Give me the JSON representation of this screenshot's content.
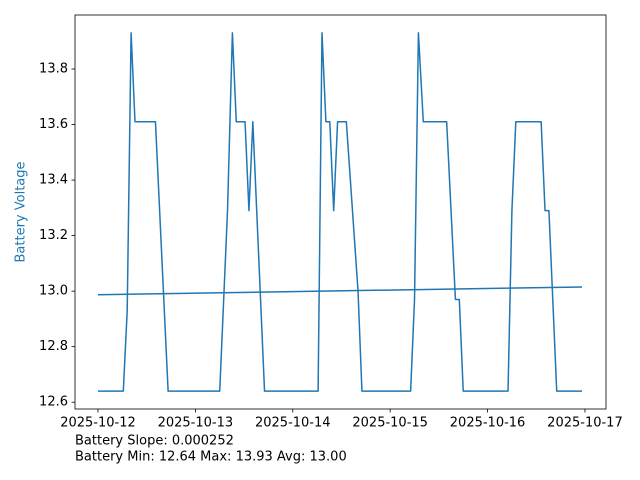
{
  "chart_data": {
    "type": "line",
    "ylabel": "Battery Voltage",
    "ylabel_color": "#1f77b4",
    "x": [
      0,
      0.26,
      0.3,
      0.34,
      0.38,
      0.59,
      0.72,
      1.25,
      1.33,
      1.38,
      1.42,
      1.51,
      1.55,
      1.59,
      1.71,
      2.26,
      2.3,
      2.34,
      2.38,
      2.42,
      2.46,
      2.55,
      2.67,
      2.71,
      3.21,
      3.25,
      3.29,
      3.34,
      3.58,
      3.67,
      3.71,
      3.75,
      4.21,
      4.25,
      4.29,
      4.55,
      4.59,
      4.63,
      4.71,
      4.97
    ],
    "series": [
      {
        "color": "#1f77b4",
        "values": [
          12.64,
          12.64,
          12.93,
          13.93,
          13.61,
          13.61,
          12.64,
          12.64,
          13.29,
          13.93,
          13.61,
          13.61,
          13.29,
          13.61,
          12.64,
          12.64,
          13.93,
          13.61,
          13.61,
          13.29,
          13.61,
          13.61,
          13.0,
          12.64,
          12.64,
          12.97,
          13.93,
          13.61,
          13.61,
          12.97,
          12.97,
          12.64,
          12.64,
          13.29,
          13.61,
          13.61,
          13.29,
          13.29,
          12.64,
          12.64
        ]
      }
    ],
    "trend": {
      "color": "#1f77b4",
      "x": [
        0,
        4.97
      ],
      "values": [
        12.987,
        13.015
      ]
    },
    "xlim": [
      -0.236,
      5.216
    ],
    "xticks": [
      {
        "value": 0,
        "label": "2025-10-12"
      },
      {
        "value": 1,
        "label": "2025-10-13"
      },
      {
        "value": 2,
        "label": "2025-10-14"
      },
      {
        "value": 3,
        "label": "2025-10-15"
      },
      {
        "value": 4,
        "label": "2025-10-16"
      },
      {
        "value": 5,
        "label": "2025-10-17"
      }
    ],
    "ylim": [
      12.5755,
      13.9945
    ],
    "yticks": [
      12.6,
      12.8,
      {
        "value": 13,
        "label": "13.0"
      },
      13.2,
      13.4,
      13.6,
      13.8
    ],
    "annotations": [
      "Battery Slope: 0.000252",
      "Battery Min: 12.64 Max: 13.93 Avg: 13.00"
    ]
  }
}
